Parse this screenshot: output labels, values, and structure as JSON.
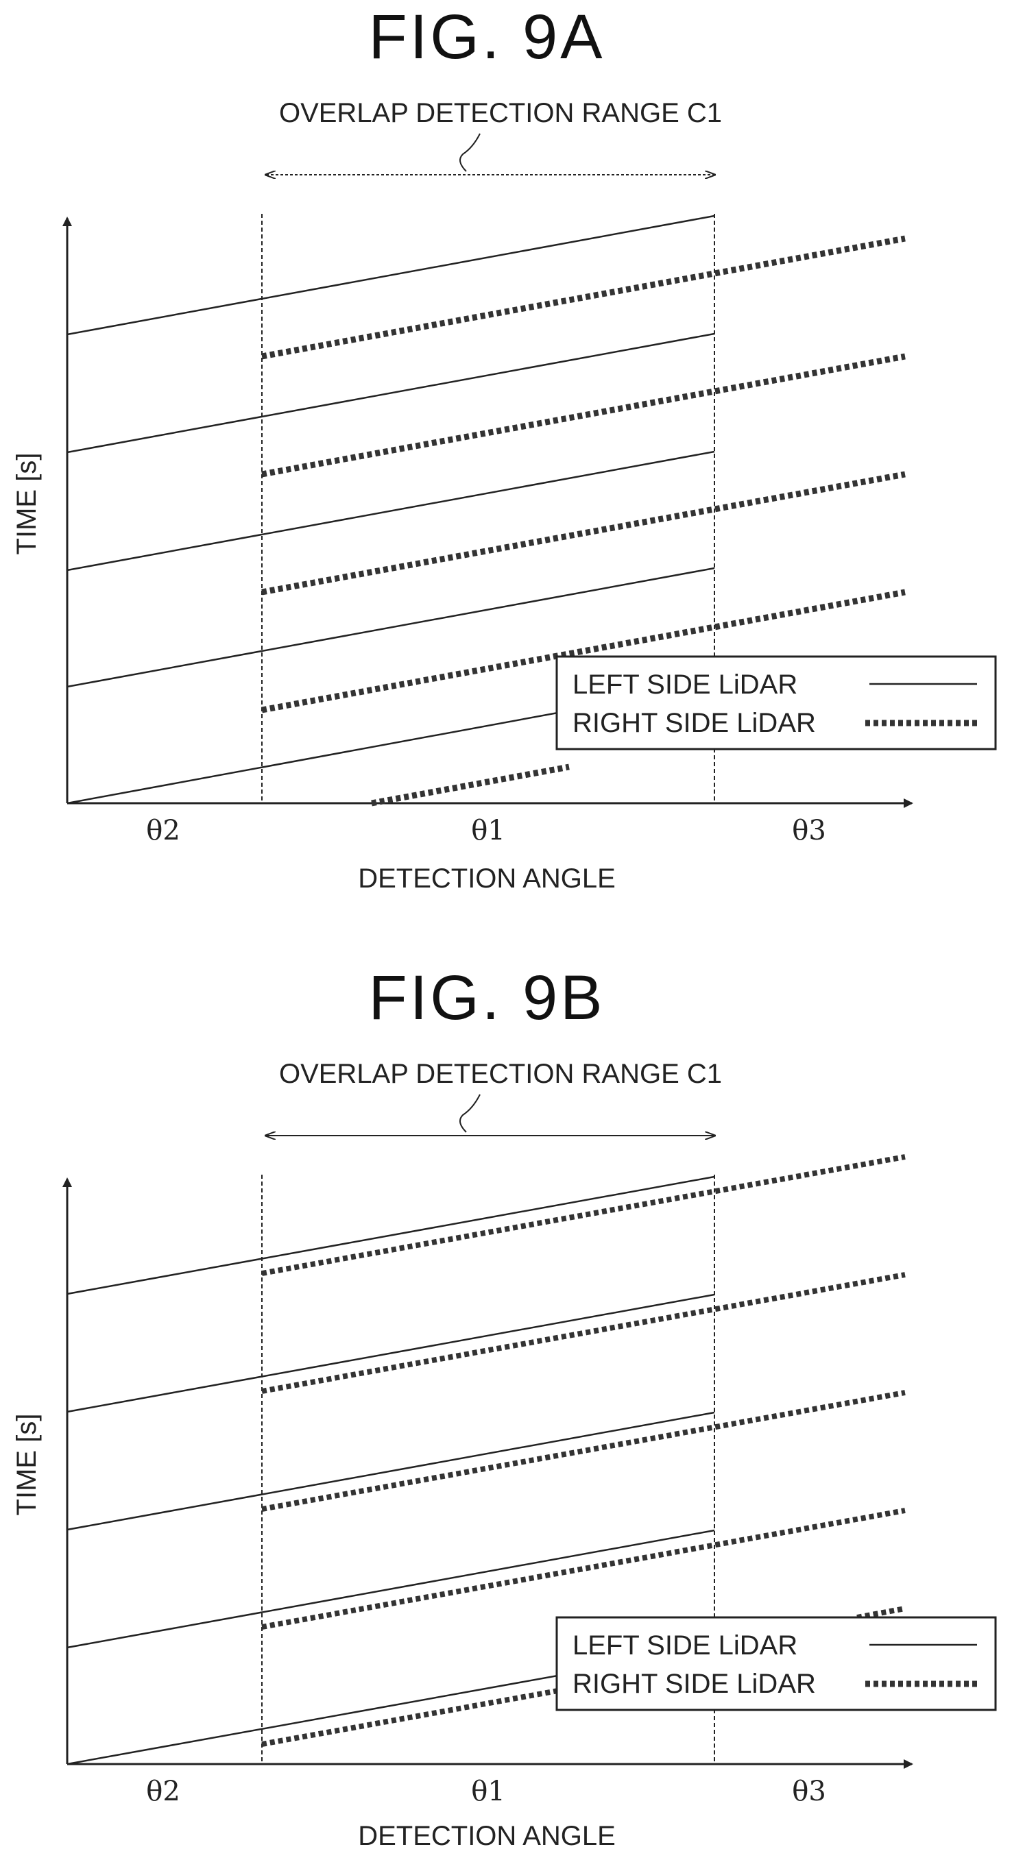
{
  "figures": [
    {
      "id": "9A",
      "title": "FIG. 9A",
      "range_label": "OVERLAP DETECTION RANGE C1",
      "x_label": "DETECTION ANGLE",
      "y_label": "TIME [s]",
      "region_labels": [
        "θ2",
        "θ1",
        "θ3"
      ],
      "legend": {
        "left": "LEFT SIDE LiDAR",
        "right": "RIGHT SIDE LiDAR"
      },
      "aligned": false
    },
    {
      "id": "9B",
      "title": "FIG. 9B",
      "range_label": "OVERLAP DETECTION RANGE C1",
      "x_label": "DETECTION ANGLE",
      "y_label": "TIME [s]",
      "region_labels": [
        "θ2",
        "θ1",
        "θ3"
      ],
      "legend": {
        "left": "LEFT SIDE LiDAR",
        "right": "RIGHT SIDE LiDAR"
      },
      "aligned": true
    }
  ],
  "colors": {
    "ink": "#222222",
    "background": "#ffffff"
  }
}
